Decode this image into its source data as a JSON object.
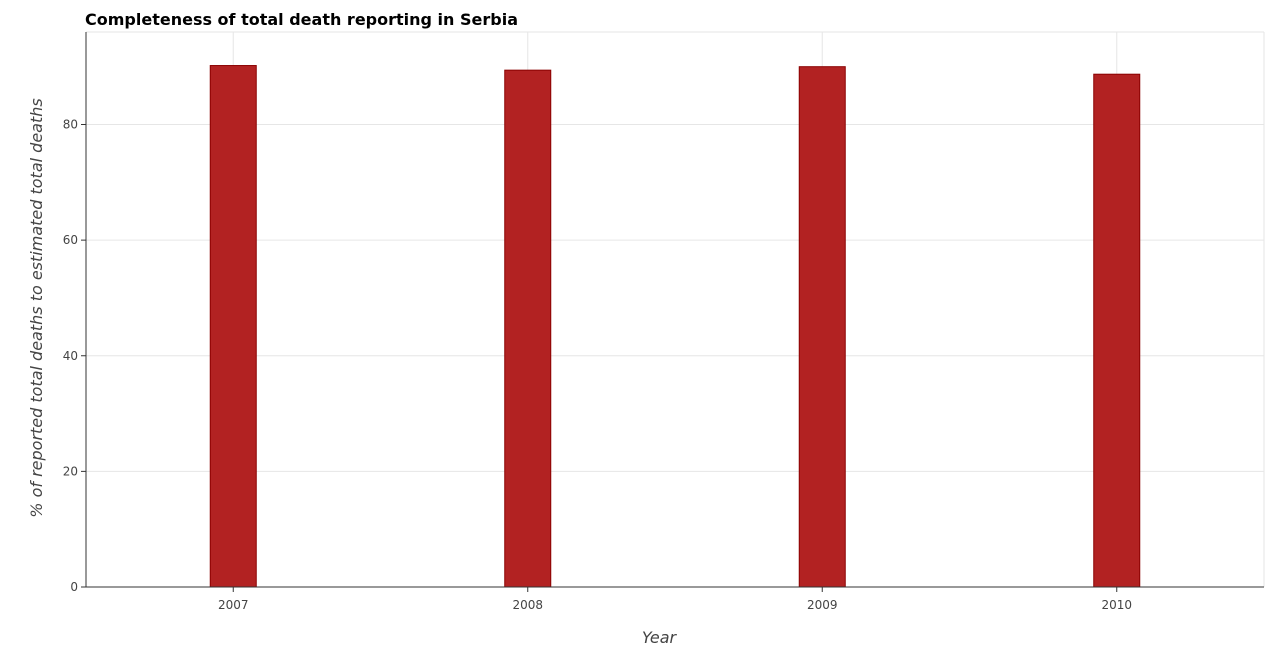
{
  "chart_data": {
    "type": "bar",
    "title": "Completeness of total death reporting in Serbia",
    "xlabel": "Year",
    "ylabel": "% of reported total deaths to estimated total deaths",
    "categories": [
      "2007",
      "2008",
      "2009",
      "2010"
    ],
    "values": [
      90.2,
      89.4,
      90.0,
      88.7
    ],
    "ylim": [
      0,
      96
    ],
    "yticks": [
      0,
      20,
      40,
      60,
      80
    ],
    "grid": true,
    "legend": "none",
    "bar_color": "#b22222",
    "bar_edge_color": "#8b0000"
  }
}
